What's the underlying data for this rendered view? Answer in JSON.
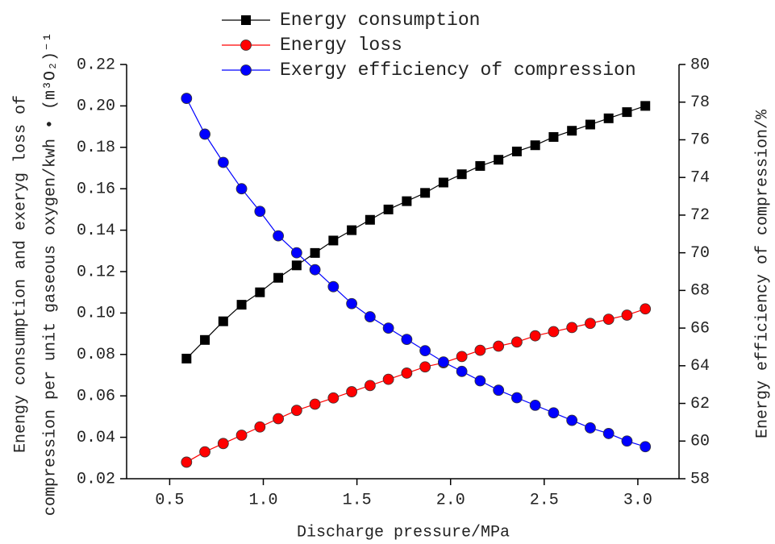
{
  "chart_data": {
    "type": "line",
    "xlabel": "Discharge pressure/MPa",
    "ylabel": [
      "Enengy consumption and exeryg loss of",
      "compression per unit gaseous oxygen/kwh • (m³O₂)⁻¹"
    ],
    "y2label": "Energy efficiency of compression/%",
    "x": [
      0.59,
      0.688,
      0.786,
      0.884,
      0.982,
      1.08,
      1.178,
      1.276,
      1.374,
      1.472,
      1.57,
      1.668,
      1.766,
      1.864,
      1.962,
      2.06,
      2.158,
      2.256,
      2.354,
      2.452,
      2.55,
      2.648,
      2.746,
      2.844,
      2.942,
      3.04
    ],
    "series": [
      {
        "name": "Energy consumption",
        "color": "#000000",
        "marker": "square",
        "axis": "y",
        "values": [
          0.078,
          0.087,
          0.096,
          0.104,
          0.11,
          0.117,
          0.123,
          0.129,
          0.135,
          0.14,
          0.145,
          0.15,
          0.154,
          0.158,
          0.163,
          0.167,
          0.171,
          0.174,
          0.178,
          0.181,
          0.185,
          0.188,
          0.191,
          0.194,
          0.197,
          0.2
        ]
      },
      {
        "name": "Energy loss",
        "color": "#ff0000",
        "marker": "circle",
        "axis": "y",
        "values": [
          0.028,
          0.033,
          0.037,
          0.041,
          0.045,
          0.049,
          0.053,
          0.056,
          0.059,
          0.062,
          0.065,
          0.068,
          0.071,
          0.074,
          0.076,
          0.079,
          0.082,
          0.084,
          0.086,
          0.089,
          0.091,
          0.093,
          0.095,
          0.097,
          0.099,
          0.102
        ]
      },
      {
        "name": "Exergy efficiency of compression",
        "color": "#0000ff",
        "marker": "circle",
        "axis": "y2",
        "values": [
          78.2,
          76.3,
          74.8,
          73.4,
          72.2,
          70.9,
          70.0,
          69.1,
          68.2,
          67.3,
          66.6,
          66.0,
          65.4,
          64.8,
          64.2,
          63.7,
          63.2,
          62.7,
          62.3,
          61.9,
          61.5,
          61.1,
          60.7,
          60.4,
          60.0,
          59.7
        ]
      }
    ],
    "xlim": [
      0.27,
      3.22
    ],
    "xticks": [
      0.5,
      {
        "value": 1,
        "label": "1.0"
      },
      1.5,
      {
        "value": 2,
        "label": "2.0"
      },
      2.5,
      {
        "value": 3,
        "label": "3.0"
      }
    ],
    "ylim": [
      0.02,
      0.22
    ],
    "yticks": [
      0.02,
      0.04,
      0.06,
      0.08,
      {
        "value": 0.1,
        "label": "0.10"
      },
      0.12,
      0.14,
      0.16,
      0.18,
      {
        "value": 0.2,
        "label": "0.20"
      },
      0.22
    ],
    "y2lim": [
      58,
      80
    ],
    "y2ticks": [
      58,
      60,
      62,
      64,
      66,
      68,
      70,
      72,
      74,
      76,
      78,
      80
    ],
    "legend": "top"
  }
}
